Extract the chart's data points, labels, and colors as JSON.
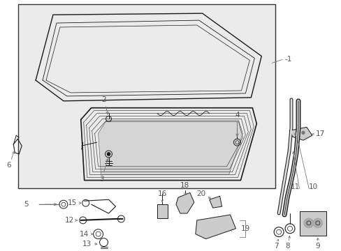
{
  "bg_color": "#ffffff",
  "box_bg": "#e8e8e8",
  "line_color": "#1a1a1a",
  "label_color": "#555555",
  "arrow_color": "#777777",
  "figsize": [
    4.89,
    3.6
  ],
  "dpi": 100
}
